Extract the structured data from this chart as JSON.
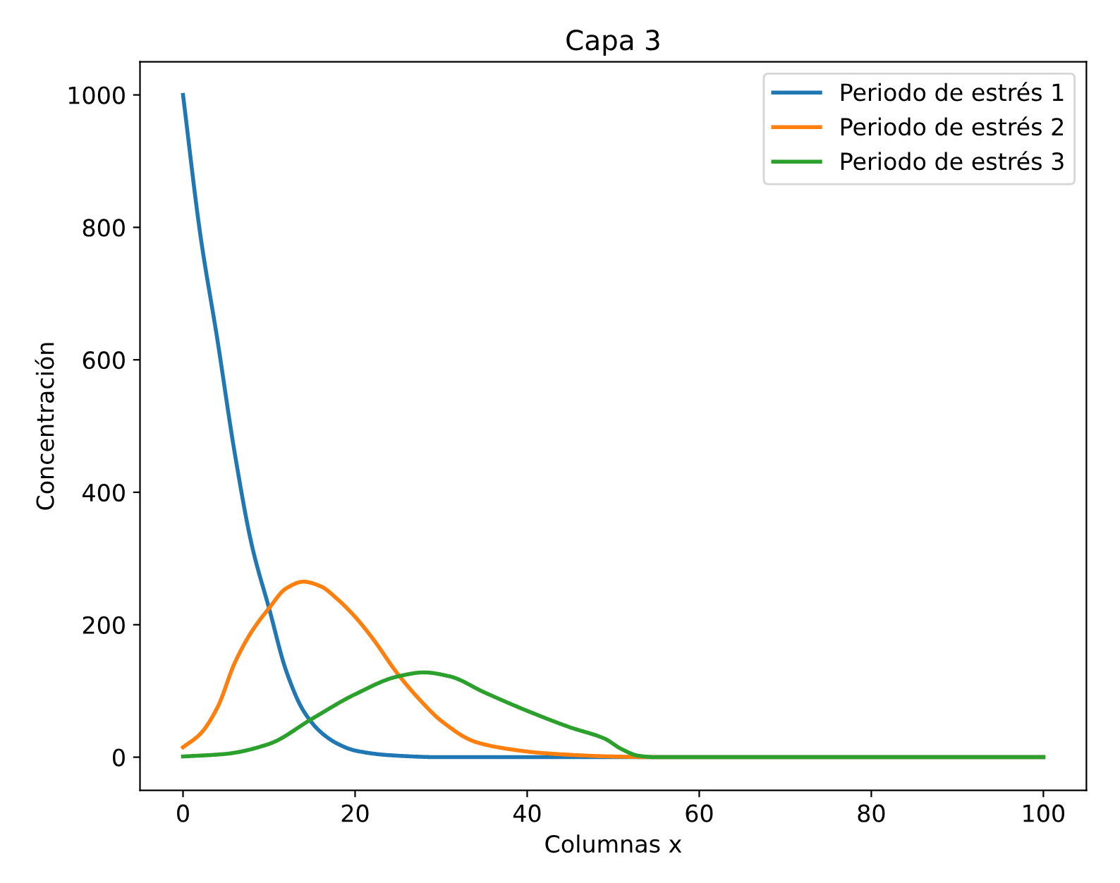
{
  "chart_data": {
    "type": "line",
    "title": "Capa 3",
    "xlabel": "Columnas x",
    "ylabel": "Concentración",
    "xlim": [
      -5,
      105
    ],
    "ylim": [
      -50,
      1050
    ],
    "xticks": [
      0,
      20,
      40,
      60,
      80,
      100
    ],
    "yticks": [
      0,
      200,
      400,
      600,
      800,
      1000
    ],
    "grid": false,
    "legend": "top right",
    "series": [
      {
        "name": "Periodo de estrés 1",
        "color": "#1f77b4",
        "x": [
          0,
          2,
          4,
          6,
          8,
          10,
          12,
          14,
          16,
          18,
          20,
          24,
          30,
          100
        ],
        "values": [
          1000,
          790,
          630,
          460,
          320,
          225,
          130,
          70,
          38,
          20,
          10,
          3,
          0,
          0
        ]
      },
      {
        "name": "Periodo de estrés 2",
        "color": "#ff7f0e",
        "x": [
          0,
          2,
          4,
          6,
          8,
          10,
          12,
          14,
          16,
          18,
          20,
          22,
          25,
          28,
          30,
          34,
          38,
          42,
          50,
          55,
          100
        ],
        "values": [
          15,
          35,
          75,
          142,
          190,
          225,
          255,
          265,
          258,
          238,
          212,
          180,
          125,
          80,
          55,
          23,
          12,
          6,
          1,
          0,
          0
        ]
      },
      {
        "name": "Periodo de estrés 3",
        "color": "#2ca02c",
        "x": [
          0,
          5,
          10,
          15,
          20,
          25,
          28,
          31,
          35,
          40,
          45,
          49,
          51,
          53,
          55,
          100
        ],
        "values": [
          1,
          5,
          20,
          58,
          95,
          122,
          128,
          122,
          98,
          70,
          45,
          28,
          12,
          2,
          0,
          0
        ]
      }
    ]
  }
}
